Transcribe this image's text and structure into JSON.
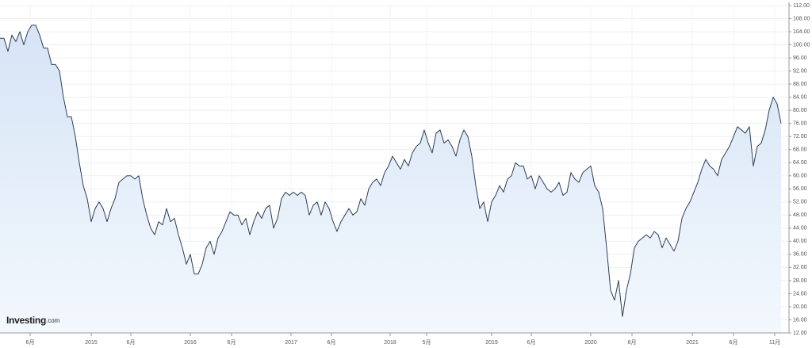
{
  "chart_data": {
    "type": "line",
    "color": "#2f3e56",
    "fill": "#dbe8f8",
    "grid": true,
    "axis_side": "right",
    "watermark": {
      "brand": "Investing",
      "suffix": ".com"
    },
    "xlim": [
      0,
      199
    ],
    "xticks": [
      {
        "value": 7.6,
        "label": "6月"
      },
      {
        "value": 23,
        "label": "2015"
      },
      {
        "value": 33,
        "label": "6月"
      },
      {
        "value": 48,
        "label": "2016"
      },
      {
        "value": 58.4,
        "label": "6月"
      },
      {
        "value": 73.4,
        "label": "2017"
      },
      {
        "value": 83.6,
        "label": "6月"
      },
      {
        "value": 98.4,
        "label": "2018"
      },
      {
        "value": 107.6,
        "label": "5月"
      },
      {
        "value": 124,
        "label": "2019"
      },
      {
        "value": 134,
        "label": "6月"
      },
      {
        "value": 149,
        "label": "2020"
      },
      {
        "value": 159.4,
        "label": "6月"
      },
      {
        "value": 174.6,
        "label": "2021"
      },
      {
        "value": 185,
        "label": "6月"
      },
      {
        "value": 195.4,
        "label": "11月"
      }
    ],
    "ylim": [
      12,
      112
    ],
    "yticks": [
      {
        "value": 12,
        "label": "12.00"
      },
      {
        "value": 16,
        "label": "16.00"
      },
      {
        "value": 20,
        "label": "20.00"
      },
      {
        "value": 24,
        "label": "24.00"
      },
      {
        "value": 28,
        "label": "28.00"
      },
      {
        "value": 32,
        "label": "32.00"
      },
      {
        "value": 36,
        "label": "36.00"
      },
      {
        "value": 40,
        "label": "40.00"
      },
      {
        "value": 44,
        "label": "44.00"
      },
      {
        "value": 48,
        "label": "48.00"
      },
      {
        "value": 52,
        "label": "52.00"
      },
      {
        "value": 56,
        "label": "56.00"
      },
      {
        "value": 60,
        "label": "60.00"
      },
      {
        "value": 64,
        "label": "64.00"
      },
      {
        "value": 68,
        "label": "68.00"
      },
      {
        "value": 72,
        "label": "72.00"
      },
      {
        "value": 76,
        "label": "76.00"
      },
      {
        "value": 80,
        "label": "80.00"
      },
      {
        "value": 84,
        "label": "84.00"
      },
      {
        "value": 88,
        "label": "88.00"
      },
      {
        "value": 92,
        "label": "92.00"
      },
      {
        "value": 96,
        "label": "96.00"
      },
      {
        "value": 100,
        "label": "100.00"
      },
      {
        "value": 104,
        "label": "104.00"
      },
      {
        "value": 108,
        "label": "108.00"
      },
      {
        "value": 112,
        "label": "112.00"
      }
    ],
    "values": [
      102,
      102,
      98,
      103,
      101,
      104,
      100,
      104,
      106,
      106,
      103,
      99,
      99,
      94,
      94,
      92,
      84,
      78,
      78,
      72,
      64,
      57,
      53,
      46,
      50,
      52,
      50,
      46,
      50,
      53,
      58,
      59,
      60,
      60,
      59,
      60,
      53,
      48,
      44,
      42,
      46,
      45,
      50,
      46,
      47,
      42,
      38,
      33,
      36,
      30,
      30,
      33,
      38,
      40,
      36,
      41,
      43,
      46,
      49,
      48,
      48,
      45,
      47,
      42,
      46,
      49,
      47,
      50,
      51,
      44,
      47,
      53,
      55,
      54,
      55,
      54,
      55,
      54,
      48,
      51,
      52,
      48,
      52,
      50,
      46,
      43,
      46,
      48,
      50,
      48,
      49,
      53,
      51,
      56,
      58,
      59,
      57,
      61,
      63,
      66,
      64,
      62,
      65,
      63,
      67,
      69,
      70,
      74,
      70,
      67,
      73,
      74,
      70,
      71,
      69,
      66,
      71,
      74,
      72,
      66,
      57,
      50,
      52,
      46,
      52,
      54,
      57,
      55,
      59,
      60,
      64,
      63,
      63,
      59,
      60,
      56,
      60,
      58,
      56,
      55,
      56,
      58,
      54,
      55,
      61,
      59,
      58,
      61,
      62,
      63,
      57,
      55,
      50,
      38,
      25,
      22,
      28,
      17,
      25,
      30,
      38,
      40,
      41,
      42,
      41,
      43,
      42,
      38,
      41,
      39,
      37,
      40,
      47,
      50,
      52,
      55,
      58,
      62,
      65,
      63,
      62,
      60,
      65,
      67,
      69,
      72,
      75,
      74,
      73,
      75,
      63,
      69,
      70,
      74,
      80,
      84,
      82,
      76
    ]
  }
}
